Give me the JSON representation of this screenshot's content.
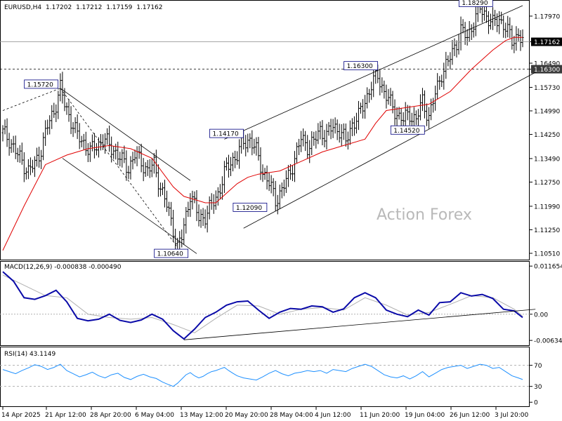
{
  "header": {
    "symbol_tf": "EURUSD,H4",
    "open": "1.17202",
    "high": "1.17212",
    "low": "1.17159",
    "close": "1.17162"
  },
  "watermark": "Action Forex",
  "colors": {
    "price": "#000000",
    "sma": "#e00000",
    "macd": "#0a0aa8",
    "signal": "#b0b0b0",
    "rsi": "#1e90ff",
    "box_border": "#000080",
    "panel_border": "#000000",
    "grid": "#9a9a9a"
  },
  "chart_data": [
    {
      "type": "line",
      "title": "EURUSD,H4",
      "y_ticks": [
        "1.17970",
        "1.17162",
        "1.16490",
        "1.16300",
        "1.15730",
        "1.14990",
        "1.14250",
        "1.13490",
        "1.12750",
        "1.11990",
        "1.11250",
        "1.10510"
      ],
      "x_ticks": [
        "14 Apr 2025",
        "21 Apr 12:00",
        "28 Apr 20:00",
        "6 May 04:00",
        "13 May 12:00",
        "20 May 20:00",
        "28 May 04:00",
        "4 Jun 12:00",
        "11 Jun 20:00",
        "19 Jun 04:00",
        "26 Jun 12:00",
        "3 Jul 20:00"
      ],
      "price_labels": [
        {
          "text": "1.15720",
          "role": "swing high"
        },
        {
          "text": "1.10640",
          "role": "swing low"
        },
        {
          "text": "1.14170",
          "role": "swing high"
        },
        {
          "text": "1.12090",
          "role": "swing low"
        },
        {
          "text": "1.16300",
          "role": "swing high"
        },
        {
          "text": "1.14520",
          "role": "swing low"
        },
        {
          "text": "1.18290",
          "role": "swing high"
        }
      ],
      "current_price": "1.17162",
      "horizontal_level": "1.16300",
      "ylim": [
        1.104,
        1.183
      ],
      "close_path": [
        [
          0,
          1.143
        ],
        [
          3,
          1.141
        ],
        [
          6,
          1.137
        ],
        [
          9,
          1.134
        ],
        [
          12,
          1.131
        ],
        [
          15,
          1.133
        ],
        [
          18,
          1.138
        ],
        [
          21,
          1.145
        ],
        [
          24,
          1.15
        ],
        [
          27,
          1.157
        ],
        [
          29,
          1.152
        ],
        [
          32,
          1.147
        ],
        [
          35,
          1.142
        ],
        [
          38,
          1.14
        ],
        [
          41,
          1.137
        ],
        [
          44,
          1.139
        ],
        [
          47,
          1.141
        ],
        [
          50,
          1.139
        ],
        [
          53,
          1.137
        ],
        [
          56,
          1.134
        ],
        [
          59,
          1.132
        ],
        [
          62,
          1.136
        ],
        [
          65,
          1.134
        ],
        [
          68,
          1.131
        ],
        [
          71,
          1.133
        ],
        [
          74,
          1.126
        ],
        [
          77,
          1.12
        ],
        [
          80,
          1.113
        ],
        [
          82,
          1.107
        ],
        [
          84,
          1.11
        ],
        [
          86,
          1.117
        ],
        [
          88,
          1.124
        ],
        [
          90,
          1.12
        ],
        [
          92,
          1.116
        ],
        [
          95,
          1.117
        ],
        [
          98,
          1.12
        ],
        [
          101,
          1.124
        ],
        [
          104,
          1.13
        ],
        [
          107,
          1.134
        ],
        [
          110,
          1.136
        ],
        [
          113,
          1.14
        ],
        [
          116,
          1.141
        ],
        [
          119,
          1.137
        ],
        [
          122,
          1.131
        ],
        [
          125,
          1.127
        ],
        [
          128,
          1.122
        ],
        [
          131,
          1.125
        ],
        [
          134,
          1.129
        ],
        [
          137,
          1.135
        ],
        [
          140,
          1.141
        ],
        [
          143,
          1.139
        ],
        [
          146,
          1.14
        ],
        [
          149,
          1.144
        ],
        [
          152,
          1.142
        ],
        [
          155,
          1.145
        ],
        [
          158,
          1.144
        ],
        [
          161,
          1.14
        ],
        [
          164,
          1.146
        ],
        [
          167,
          1.148
        ],
        [
          170,
          1.153
        ],
        [
          173,
          1.158
        ],
        [
          176,
          1.161
        ],
        [
          179,
          1.156
        ],
        [
          182,
          1.152
        ],
        [
          185,
          1.149
        ],
        [
          188,
          1.147
        ],
        [
          191,
          1.149
        ],
        [
          194,
          1.147
        ],
        [
          197,
          1.153
        ],
        [
          200,
          1.148
        ],
        [
          203,
          1.155
        ],
        [
          206,
          1.162
        ],
        [
          209,
          1.165
        ],
        [
          212,
          1.17
        ],
        [
          215,
          1.175
        ],
        [
          218,
          1.173
        ],
        [
          221,
          1.178
        ],
        [
          224,
          1.182
        ],
        [
          227,
          1.18
        ],
        [
          230,
          1.177
        ],
        [
          233,
          1.179
        ],
        [
          236,
          1.176
        ],
        [
          239,
          1.172
        ],
        [
          242,
          1.174
        ],
        [
          244,
          1.17162
        ]
      ],
      "sma_path": [
        [
          0,
          1.106
        ],
        [
          10,
          1.12
        ],
        [
          20,
          1.133
        ],
        [
          30,
          1.136
        ],
        [
          40,
          1.138
        ],
        [
          50,
          1.139
        ],
        [
          60,
          1.138
        ],
        [
          70,
          1.135
        ],
        [
          80,
          1.126
        ],
        [
          85,
          1.123
        ],
        [
          90,
          1.122
        ],
        [
          95,
          1.121
        ],
        [
          100,
          1.121
        ],
        [
          105,
          1.124
        ],
        [
          110,
          1.127
        ],
        [
          115,
          1.129
        ],
        [
          120,
          1.13
        ],
        [
          130,
          1.131
        ],
        [
          140,
          1.134
        ],
        [
          150,
          1.137
        ],
        [
          160,
          1.139
        ],
        [
          170,
          1.141
        ],
        [
          175,
          1.146
        ],
        [
          180,
          1.15
        ],
        [
          190,
          1.151
        ],
        [
          200,
          1.152
        ],
        [
          210,
          1.156
        ],
        [
          220,
          1.163
        ],
        [
          230,
          1.169
        ],
        [
          236,
          1.172
        ],
        [
          240,
          1.173
        ],
        [
          244,
          1.173
        ]
      ],
      "channels": [
        {
          "from": [
            0,
            1.15
          ],
          "to": [
            27,
            1.157
          ]
        },
        {
          "from": [
            27,
            1.157
          ],
          "to": [
            88,
            1.128
          ]
        },
        {
          "from": [
            28,
            1.135
          ],
          "to": [
            91,
            1.105
          ]
        },
        {
          "from": [
            27,
            1.157
          ],
          "to": [
            82,
            1.107
          ]
        },
        {
          "from": [
            104,
            1.141
          ],
          "to": [
            244,
            1.183
          ]
        },
        {
          "from": [
            113,
            1.113
          ],
          "to": [
            250,
            1.162
          ]
        }
      ]
    },
    {
      "type": "line",
      "title": "MACD(12,26,9) -0.000838 -0.000490",
      "y_ticks": [
        "0.011654",
        "0.00",
        "-0.006345"
      ],
      "ylim": [
        -0.007,
        0.0122
      ],
      "macd_path": [
        [
          0,
          0.0103
        ],
        [
          5,
          0.008
        ],
        [
          10,
          0.004
        ],
        [
          15,
          0.0036
        ],
        [
          20,
          0.0045
        ],
        [
          25,
          0.0058
        ],
        [
          30,
          0.003
        ],
        [
          35,
          -0.001
        ],
        [
          40,
          -0.0016
        ],
        [
          45,
          -0.0012
        ],
        [
          50,
          0.0
        ],
        [
          55,
          -0.0015
        ],
        [
          60,
          -0.002
        ],
        [
          65,
          -0.0014
        ],
        [
          70,
          0.0
        ],
        [
          75,
          -0.0012
        ],
        [
          80,
          -0.004
        ],
        [
          85,
          -0.006
        ],
        [
          90,
          -0.0036
        ],
        [
          95,
          -0.0008
        ],
        [
          100,
          0.0005
        ],
        [
          105,
          0.0022
        ],
        [
          110,
          0.003
        ],
        [
          115,
          0.0032
        ],
        [
          120,
          0.001
        ],
        [
          125,
          -0.001
        ],
        [
          130,
          0.0005
        ],
        [
          135,
          0.0014
        ],
        [
          140,
          0.0012
        ],
        [
          145,
          0.002
        ],
        [
          150,
          0.0018
        ],
        [
          155,
          0.0005
        ],
        [
          160,
          0.0013
        ],
        [
          165,
          0.004
        ],
        [
          170,
          0.0052
        ],
        [
          175,
          0.004
        ],
        [
          180,
          0.001
        ],
        [
          185,
          0.0
        ],
        [
          190,
          -0.0006
        ],
        [
          195,
          0.001
        ],
        [
          200,
          -0.0002
        ],
        [
          205,
          0.0028
        ],
        [
          210,
          0.003
        ],
        [
          215,
          0.0052
        ],
        [
          220,
          0.0044
        ],
        [
          225,
          0.0048
        ],
        [
          230,
          0.0038
        ],
        [
          235,
          0.0012
        ],
        [
          240,
          0.0008
        ],
        [
          244,
          -0.0008
        ]
      ],
      "signal_path": [
        [
          0,
          0.0095
        ],
        [
          10,
          0.007
        ],
        [
          20,
          0.0045
        ],
        [
          30,
          0.004
        ],
        [
          40,
          0.0
        ],
        [
          50,
          -0.0008
        ],
        [
          60,
          -0.0012
        ],
        [
          70,
          -0.0008
        ],
        [
          80,
          -0.0025
        ],
        [
          90,
          -0.0045
        ],
        [
          100,
          -0.001
        ],
        [
          110,
          0.0022
        ],
        [
          120,
          0.002
        ],
        [
          130,
          0.0
        ],
        [
          140,
          0.0012
        ],
        [
          150,
          0.0016
        ],
        [
          160,
          0.001
        ],
        [
          170,
          0.004
        ],
        [
          180,
          0.0022
        ],
        [
          190,
          -0.0002
        ],
        [
          200,
          0.0004
        ],
        [
          210,
          0.0024
        ],
        [
          220,
          0.0045
        ],
        [
          230,
          0.004
        ],
        [
          240,
          0.0012
        ],
        [
          244,
          -0.0005
        ]
      ],
      "trendline": {
        "from": [
          85,
          -0.0062
        ],
        "to": [
          250,
          0.0012
        ]
      }
    },
    {
      "type": "line",
      "title": "RSI(14) 43.1149",
      "y_ticks": [
        "70",
        "30",
        "0"
      ],
      "ylim": [
        -5,
        100
      ],
      "rsi_path": [
        [
          0,
          62
        ],
        [
          3,
          58
        ],
        [
          6,
          54
        ],
        [
          9,
          60
        ],
        [
          12,
          65
        ],
        [
          15,
          71
        ],
        [
          18,
          68
        ],
        [
          21,
          62
        ],
        [
          24,
          66
        ],
        [
          27,
          72
        ],
        [
          30,
          60
        ],
        [
          33,
          54
        ],
        [
          36,
          48
        ],
        [
          39,
          52
        ],
        [
          42,
          57
        ],
        [
          45,
          50
        ],
        [
          48,
          46
        ],
        [
          51,
          52
        ],
        [
          54,
          55
        ],
        [
          57,
          47
        ],
        [
          60,
          43
        ],
        [
          63,
          49
        ],
        [
          66,
          53
        ],
        [
          69,
          48
        ],
        [
          72,
          45
        ],
        [
          75,
          38
        ],
        [
          78,
          33
        ],
        [
          80,
          30
        ],
        [
          82,
          36
        ],
        [
          84,
          44
        ],
        [
          86,
          52
        ],
        [
          88,
          56
        ],
        [
          90,
          50
        ],
        [
          92,
          46
        ],
        [
          94,
          49
        ],
        [
          96,
          54
        ],
        [
          98,
          58
        ],
        [
          100,
          60
        ],
        [
          102,
          63
        ],
        [
          104,
          66
        ],
        [
          106,
          60
        ],
        [
          108,
          55
        ],
        [
          110,
          50
        ],
        [
          113,
          46
        ],
        [
          116,
          44
        ],
        [
          119,
          42
        ],
        [
          122,
          48
        ],
        [
          125,
          55
        ],
        [
          128,
          60
        ],
        [
          131,
          54
        ],
        [
          134,
          50
        ],
        [
          137,
          55
        ],
        [
          140,
          57
        ],
        [
          143,
          60
        ],
        [
          146,
          58
        ],
        [
          149,
          60
        ],
        [
          152,
          55
        ],
        [
          155,
          62
        ],
        [
          158,
          60
        ],
        [
          161,
          58
        ],
        [
          164,
          64
        ],
        [
          167,
          68
        ],
        [
          170,
          72
        ],
        [
          173,
          68
        ],
        [
          176,
          60
        ],
        [
          179,
          52
        ],
        [
          182,
          48
        ],
        [
          185,
          46
        ],
        [
          188,
          50
        ],
        [
          191,
          44
        ],
        [
          194,
          50
        ],
        [
          197,
          58
        ],
        [
          200,
          48
        ],
        [
          203,
          55
        ],
        [
          206,
          62
        ],
        [
          209,
          66
        ],
        [
          212,
          68
        ],
        [
          215,
          70
        ],
        [
          218,
          64
        ],
        [
          221,
          68
        ],
        [
          224,
          72
        ],
        [
          227,
          70
        ],
        [
          230,
          64
        ],
        [
          233,
          66
        ],
        [
          236,
          58
        ],
        [
          239,
          50
        ],
        [
          242,
          46
        ],
        [
          244,
          43
        ]
      ],
      "levels": [
        70,
        30
      ]
    }
  ]
}
